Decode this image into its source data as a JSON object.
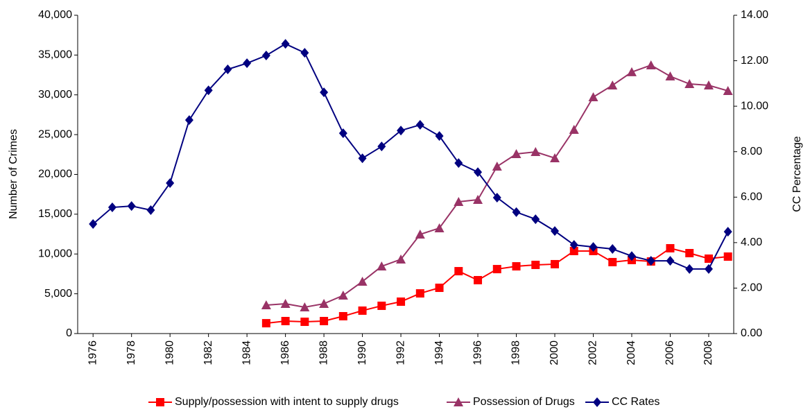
{
  "chart_data": {
    "type": "line",
    "y_label": "Number of Crimes",
    "y2_label": "CC Percentage",
    "x": [
      1976,
      1977,
      1978,
      1979,
      1980,
      1981,
      1982,
      1983,
      1984,
      1985,
      1986,
      1987,
      1988,
      1989,
      1990,
      1991,
      1992,
      1993,
      1994,
      1995,
      1996,
      1997,
      1998,
      1999,
      2000,
      2001,
      2002,
      2003,
      2004,
      2005,
      2006,
      2007,
      2008,
      2009
    ],
    "xlim": [
      1975.2,
      2009.3
    ],
    "xticks": [
      1976,
      1978,
      1980,
      1982,
      1984,
      1986,
      1988,
      1990,
      1992,
      1994,
      1996,
      1998,
      2000,
      2002,
      2004,
      2006,
      2008
    ],
    "ylim": [
      0,
      40000
    ],
    "yticks": [
      0,
      {
        "value": 5000,
        "label": "5,000"
      },
      {
        "value": 10000,
        "label": "10,000"
      },
      {
        "value": 15000,
        "label": "15,000"
      },
      {
        "value": 20000,
        "label": "20,000"
      },
      {
        "value": 25000,
        "label": "25,000"
      },
      {
        "value": 30000,
        "label": "30,000"
      },
      {
        "value": 35000,
        "label": "35,000"
      },
      {
        "value": 40000,
        "label": "40,000"
      }
    ],
    "y2lim": [
      0,
      14
    ],
    "y2ticks": [
      {
        "value": 0,
        "label": "0.00"
      },
      {
        "value": 2,
        "label": "2.00"
      },
      {
        "value": 4,
        "label": "4.00"
      },
      {
        "value": 6,
        "label": "6.00"
      },
      {
        "value": 8,
        "label": "8.00"
      },
      {
        "value": 10,
        "label": "10.00"
      },
      {
        "value": 12,
        "label": "12.00"
      },
      {
        "value": 14,
        "label": "14.00"
      }
    ],
    "legend": "bottom",
    "series": [
      {
        "name": "Supply/possession with intent to supply drugs",
        "color": "#ff0000",
        "marker": "square",
        "values": [
          null,
          null,
          null,
          null,
          null,
          null,
          null,
          null,
          null,
          1300,
          1570,
          1480,
          1570,
          2180,
          2880,
          3490,
          4010,
          5050,
          5750,
          7840,
          6710,
          8100,
          8450,
          8630,
          8720,
          10370,
          10370,
          8980,
          9240,
          9060,
          10720,
          10110,
          9410,
          9670
        ]
      },
      {
        "name": "Possession of Drugs",
        "color": "#993366",
        "marker": "triangle",
        "values": [
          null,
          null,
          null,
          null,
          null,
          null,
          null,
          null,
          null,
          3570,
          3750,
          3310,
          3750,
          4790,
          6540,
          8450,
          9330,
          12460,
          13250,
          16560,
          16820,
          21000,
          22570,
          22830,
          22050,
          25620,
          29720,
          31200,
          32860,
          33730,
          32330,
          31370,
          31200,
          30500
        ]
      },
      {
        "name": "CC Rates",
        "color": "#000080",
        "marker": "diamond",
        "axis": "y2",
        "values": [
          4.82,
          5.55,
          5.61,
          5.43,
          6.62,
          9.39,
          10.7,
          11.62,
          11.89,
          12.23,
          12.74,
          12.35,
          10.61,
          8.81,
          7.71,
          8.23,
          8.93,
          9.18,
          8.69,
          7.5,
          7.1,
          5.98,
          5.34,
          5.03,
          4.51,
          3.9,
          3.81,
          3.72,
          3.41,
          3.2,
          3.2,
          2.84,
          2.84,
          4.48
        ]
      }
    ]
  }
}
